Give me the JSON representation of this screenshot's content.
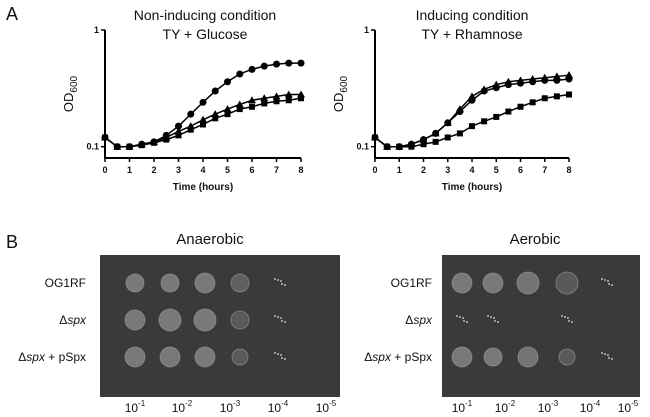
{
  "panels": [
    "A",
    "B"
  ],
  "chart_data": [
    {
      "type": "line",
      "title": "Non-inducing condition",
      "subtitle": "TY + Glucose",
      "xlabel": "Time (hours)",
      "ylabel": "OD",
      "ylabel_sub": "600",
      "log_y": true,
      "x": [
        0,
        0.5,
        1,
        1.5,
        2,
        2.5,
        3,
        3.5,
        4,
        4.5,
        5,
        5.5,
        6,
        6.5,
        7,
        7.5,
        8
      ],
      "xlim": [
        0,
        8
      ],
      "xticks": [
        0,
        1,
        2,
        3,
        4,
        5,
        6,
        7,
        8
      ],
      "ylim": [
        0.08,
        1
      ],
      "yticks": [
        0.1,
        1
      ],
      "series": [
        {
          "marker": "circle",
          "color": "#000000",
          "values": [
            0.12,
            0.1,
            0.1,
            0.105,
            0.11,
            0.125,
            0.15,
            0.19,
            0.24,
            0.3,
            0.36,
            0.42,
            0.46,
            0.49,
            0.51,
            0.52,
            0.52
          ]
        },
        {
          "marker": "triangle",
          "color": "#000000",
          "values": [
            0.12,
            0.1,
            0.1,
            0.105,
            0.11,
            0.12,
            0.135,
            0.15,
            0.17,
            0.19,
            0.21,
            0.23,
            0.25,
            0.26,
            0.27,
            0.28,
            0.28
          ]
        },
        {
          "marker": "square",
          "color": "#000000",
          "values": [
            0.12,
            0.1,
            0.1,
            0.103,
            0.108,
            0.115,
            0.125,
            0.14,
            0.155,
            0.175,
            0.19,
            0.21,
            0.22,
            0.235,
            0.245,
            0.25,
            0.26
          ]
        }
      ]
    },
    {
      "type": "line",
      "title": "Inducing condition",
      "subtitle": "TY + Rhamnose",
      "xlabel": "Time (hours)",
      "ylabel": "OD",
      "ylabel_sub": "600",
      "log_y": true,
      "x": [
        0,
        0.5,
        1,
        1.5,
        2,
        2.5,
        3,
        3.5,
        4,
        4.5,
        5,
        5.5,
        6,
        6.5,
        7,
        7.5,
        8
      ],
      "xlim": [
        0,
        8
      ],
      "xticks": [
        0,
        1,
        2,
        3,
        4,
        5,
        6,
        7,
        8
      ],
      "ylim": [
        0.08,
        1
      ],
      "yticks": [
        0.1,
        1
      ],
      "series": [
        {
          "marker": "circle",
          "color": "#000000",
          "values": [
            0.12,
            0.1,
            0.1,
            0.105,
            0.115,
            0.13,
            0.16,
            0.2,
            0.25,
            0.3,
            0.32,
            0.34,
            0.35,
            0.36,
            0.37,
            0.37,
            0.38
          ]
        },
        {
          "marker": "triangle",
          "color": "#000000",
          "values": [
            0.12,
            0.1,
            0.1,
            0.105,
            0.115,
            0.13,
            0.16,
            0.21,
            0.27,
            0.31,
            0.34,
            0.36,
            0.37,
            0.38,
            0.39,
            0.4,
            0.41
          ]
        },
        {
          "marker": "square",
          "color": "#000000",
          "values": [
            0.12,
            0.1,
            0.1,
            0.1,
            0.105,
            0.11,
            0.12,
            0.13,
            0.15,
            0.165,
            0.18,
            0.2,
            0.22,
            0.24,
            0.26,
            0.27,
            0.28
          ]
        }
      ]
    }
  ],
  "plates": [
    {
      "title": "Anaerobic",
      "rows": [
        {
          "parts": [
            "OG1RF"
          ]
        },
        {
          "parts": [
            "Δ",
            "spx"
          ]
        },
        {
          "parts": [
            "Δ",
            "spx",
            " + pSpx"
          ]
        }
      ],
      "dilutions": [
        {
          "base": "10",
          "exponent": "-1"
        },
        {
          "base": "10",
          "exponent": "-2"
        },
        {
          "base": "10",
          "exponent": "-3"
        },
        {
          "base": "10",
          "exponent": "-4"
        },
        {
          "base": "10",
          "exponent": "-5"
        }
      ]
    },
    {
      "title": "Aerobic",
      "rows": [
        {
          "parts": [
            "OG1RF"
          ]
        },
        {
          "parts": [
            "Δ",
            "spx"
          ]
        },
        {
          "parts": [
            "Δ",
            "spx",
            " + pSpx"
          ]
        }
      ],
      "dilutions": [
        {
          "base": "10",
          "exponent": "-1"
        },
        {
          "base": "10",
          "exponent": "-2"
        },
        {
          "base": "10",
          "exponent": "-3"
        },
        {
          "base": "10",
          "exponent": "-4"
        },
        {
          "base": "10",
          "exponent": "-5"
        }
      ]
    }
  ]
}
